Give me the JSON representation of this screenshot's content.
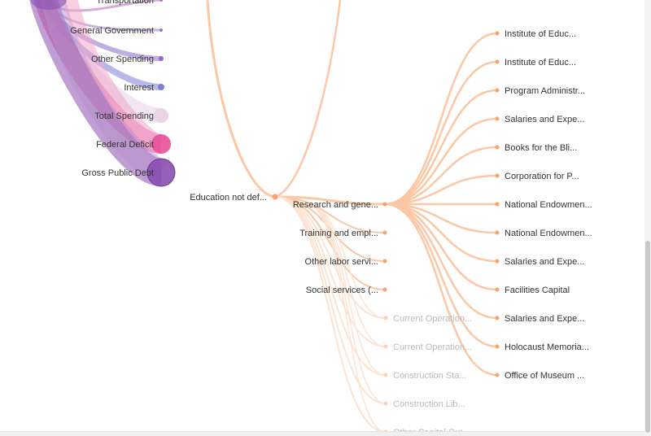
{
  "colors": {
    "link": "#fbc7a4",
    "link_faint": "#fde3d2",
    "node": "#f6a36f",
    "label": "#333333",
    "label_faint": "#bbbbbb",
    "purple": "#8a4fb0",
    "purple_light": "#b592c9",
    "pink": "#e8509a",
    "pink_light": "#f2a6cb",
    "violet": "#7b7fd8"
  },
  "left_categories": [
    {
      "label": "Transportation",
      "color": "#b46ab8"
    },
    {
      "label": "General Government",
      "color": "#9b73c8"
    },
    {
      "label": "Other Spending",
      "color": "#8c6cc9"
    },
    {
      "label": "Interest",
      "color": "#7b7fd8"
    },
    {
      "label": "Total Spending",
      "color": "#e6d1e6"
    },
    {
      "label": "Federal Deficit",
      "color": "#e8509a"
    },
    {
      "label": "Gross Public Debt",
      "color": "#8a4fb0"
    }
  ],
  "root_node": {
    "label": "Education not def..."
  },
  "mid_nodes": [
    {
      "label": "Research and gene...",
      "faint": false
    },
    {
      "label": "Training and empl...",
      "faint": false
    },
    {
      "label": "Other labor servi...",
      "faint": false
    },
    {
      "label": "Social services (...",
      "faint": false
    },
    {
      "label": "Current Operation...",
      "faint": true
    },
    {
      "label": "Current Operation...",
      "faint": true
    },
    {
      "label": "Construction Sta...",
      "faint": true
    },
    {
      "label": "Construction Lib...",
      "faint": true
    },
    {
      "label": "Other Capital Out...",
      "faint": true
    }
  ],
  "right_nodes": [
    {
      "label": "Institute of Educ..."
    },
    {
      "label": "Institute of Educ..."
    },
    {
      "label": "Program Administr..."
    },
    {
      "label": "Salaries and Expe..."
    },
    {
      "label": "Books for the Bli..."
    },
    {
      "label": "Corporation for P..."
    },
    {
      "label": "National Endowmen..."
    },
    {
      "label": "National Endowmen..."
    },
    {
      "label": "Salaries and Expe..."
    },
    {
      "label": "Facilities Capital"
    },
    {
      "label": "Salaries and Expe..."
    },
    {
      "label": "Holocaust Memoria..."
    },
    {
      "label": "Office of Museum ..."
    }
  ]
}
